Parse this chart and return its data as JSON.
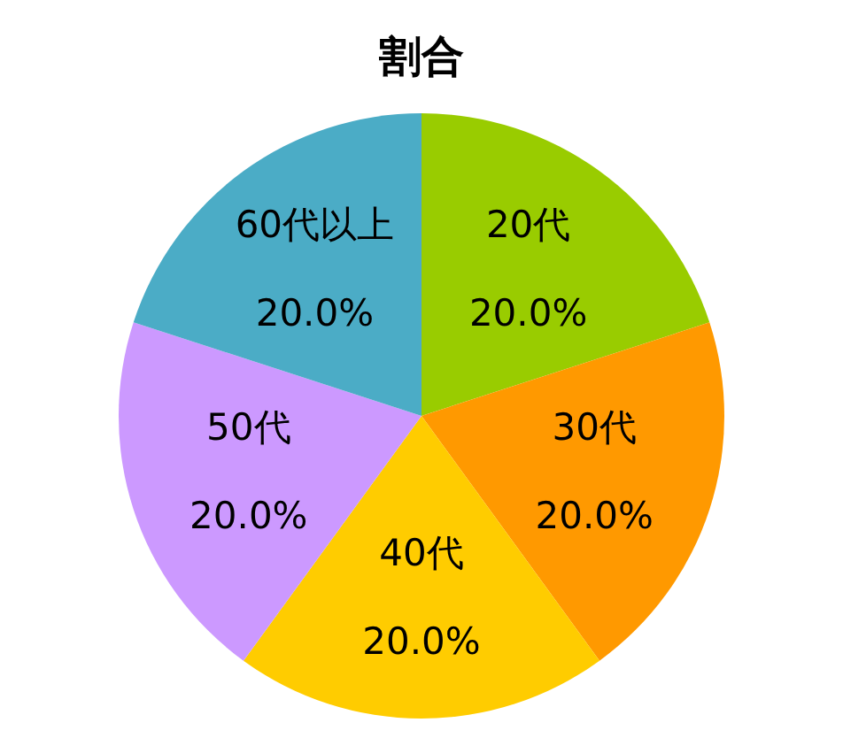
{
  "chart_data": {
    "type": "pie",
    "title": "割合",
    "categories": [
      "20代",
      "30代",
      "40代",
      "50代",
      "60代以上"
    ],
    "values": [
      20,
      20,
      20,
      20,
      20
    ],
    "colors": [
      "#99cc00",
      "#ff9900",
      "#ffcc00",
      "#cc99ff",
      "#4bacc6"
    ],
    "value_labels": [
      "20.0%",
      "20.0%",
      "20.0%",
      "20.0%",
      "20.0%"
    ]
  }
}
